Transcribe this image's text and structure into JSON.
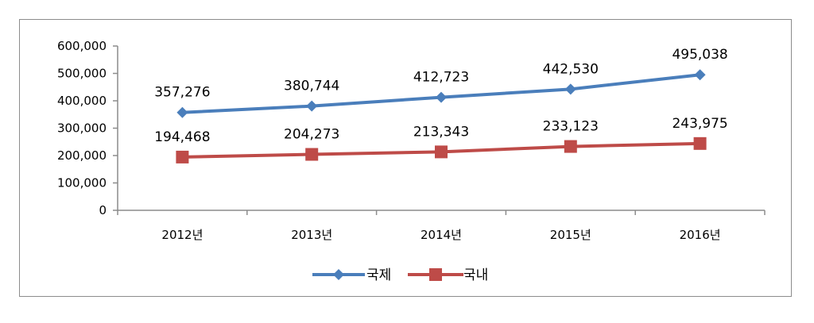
{
  "chart_data": {
    "type": "line",
    "title": "",
    "xlabel": "",
    "ylabel": "",
    "categories": [
      "2012년",
      "2013년",
      "2014년",
      "2015년",
      "2016년"
    ],
    "ylim": [
      0,
      600000
    ],
    "yticks": [
      0,
      100000,
      200000,
      300000,
      400000,
      500000,
      600000
    ],
    "ytick_labels": [
      "0",
      "100,000",
      "200,000",
      "300,000",
      "400,000",
      "500,000",
      "600,000"
    ],
    "grid": false,
    "legend_position": "bottom",
    "series": [
      {
        "name": "국제",
        "color": "#4a7ebb",
        "marker": "diamond",
        "values": [
          357276,
          380744,
          412723,
          442530,
          495038
        ],
        "labels": [
          "357,276",
          "380,744",
          "412,723",
          "442,530",
          "495,038"
        ]
      },
      {
        "name": "국내",
        "color": "#be4b48",
        "marker": "square",
        "values": [
          194468,
          204273,
          213343,
          233123,
          243975
        ],
        "labels": [
          "194,468",
          "204,273",
          "213,343",
          "233,123",
          "243,975"
        ]
      }
    ]
  }
}
